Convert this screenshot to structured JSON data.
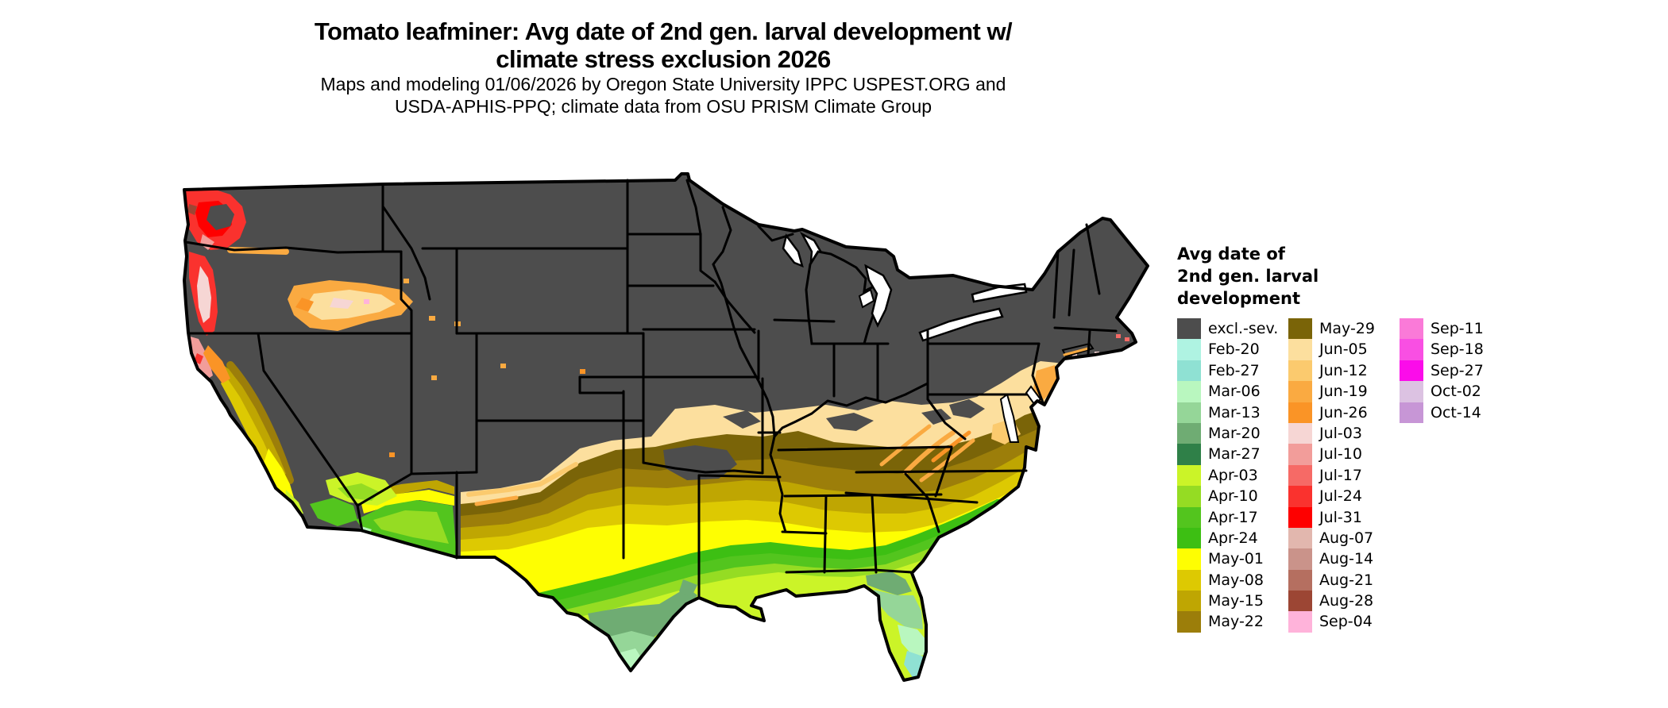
{
  "title": {
    "line1": "Tomato leafminer: Avg date of 2nd gen. larval development w/",
    "line2": "climate stress exclusion 2026"
  },
  "subtitle": {
    "line1": "Maps and modeling 01/06/2026 by Oregon State University IPPC USPEST.ORG and",
    "line2": "USDA-APHIS-PPQ; climate data from OSU PRISM Climate Group"
  },
  "legend": {
    "title_lines": [
      "Avg date of",
      "2nd gen. larval",
      "development"
    ],
    "columns": [
      {
        "entries": [
          {
            "label": "excl.-sev.",
            "color": "#4d4d4d"
          },
          {
            "label": "Feb-20",
            "color": "#aff3e2"
          },
          {
            "label": "Feb-27",
            "color": "#8fe1d3"
          },
          {
            "label": "Mar-06",
            "color": "#b9f7bf"
          },
          {
            "label": "Mar-13",
            "color": "#95d698"
          },
          {
            "label": "Mar-20",
            "color": "#6fac73"
          },
          {
            "label": "Mar-27",
            "color": "#2f8048"
          },
          {
            "label": "Apr-03",
            "color": "#cbf428"
          },
          {
            "label": "Apr-10",
            "color": "#95dc23"
          },
          {
            "label": "Apr-17",
            "color": "#53c51e"
          },
          {
            "label": "Apr-24",
            "color": "#3dbf13"
          },
          {
            "label": "May-01",
            "color": "#fefe02"
          },
          {
            "label": "May-08",
            "color": "#ddc902"
          },
          {
            "label": "May-15",
            "color": "#bfa602"
          },
          {
            "label": "May-22",
            "color": "#9c7e0a"
          }
        ]
      },
      {
        "entries": [
          {
            "label": "May-29",
            "color": "#7a6408"
          },
          {
            "label": "Jun-05",
            "color": "#fcdf9e"
          },
          {
            "label": "Jun-12",
            "color": "#fbca6e"
          },
          {
            "label": "Jun-19",
            "color": "#faaa41"
          },
          {
            "label": "Jun-26",
            "color": "#fa9426"
          },
          {
            "label": "Jul-03",
            "color": "#f6d6d4"
          },
          {
            "label": "Jul-10",
            "color": "#f29d9a"
          },
          {
            "label": "Jul-17",
            "color": "#f66a66"
          },
          {
            "label": "Jul-24",
            "color": "#fa322e"
          },
          {
            "label": "Jul-31",
            "color": "#fe0000"
          },
          {
            "label": "Aug-07",
            "color": "#e2b7ae"
          },
          {
            "label": "Aug-14",
            "color": "#ca938a"
          },
          {
            "label": "Aug-21",
            "color": "#b56f60"
          },
          {
            "label": "Aug-28",
            "color": "#9c4634"
          },
          {
            "label": "Sep-04",
            "color": "#ffb3da"
          }
        ]
      },
      {
        "entries": [
          {
            "label": "Sep-11",
            "color": "#fa7ad8"
          },
          {
            "label": "Sep-18",
            "color": "#f94fe3"
          },
          {
            "label": "Sep-27",
            "color": "#fb0cea"
          },
          {
            "label": "Oct-02",
            "color": "#dcc2e2"
          },
          {
            "label": "Oct-14",
            "color": "#c796d6"
          }
        ]
      }
    ]
  },
  "map": {
    "border_color": "#000000",
    "water_color": "#ffffff",
    "fills": {
      "excl": "#4d4d4d",
      "feb20": "#aff3e2",
      "feb27": "#8fe1d3",
      "mar06": "#b9f7bf",
      "mar13": "#95d698",
      "mar20": "#6fac73",
      "mar27": "#2f8048",
      "apr03": "#cbf428",
      "apr10": "#95dc23",
      "apr17": "#53c51e",
      "apr24": "#3dbf13",
      "may01": "#fefe02",
      "may08": "#ddc902",
      "may15": "#bfa602",
      "may22": "#9c7e0a",
      "may29": "#7a6408",
      "jun05": "#fcdf9e",
      "jun12": "#fbca6e",
      "jun19": "#faaa41",
      "jun26": "#fa9426",
      "jul03": "#f6d6d4",
      "jul10": "#f29d9a",
      "jul17": "#f66a66",
      "jul24": "#fa322e",
      "jul31": "#fe0000",
      "aug28": "#9c4634",
      "sep04": "#ffb3da"
    }
  },
  "chart_data": {
    "type": "choropleth-map",
    "title": "Tomato leafminer: Avg date of 2nd gen. larval development w/ climate stress exclusion 2026",
    "legend_title": "Avg date of 2nd gen. larval development",
    "region": "Continental United States",
    "classes": [
      "excl.-sev.",
      "Feb-20",
      "Feb-27",
      "Mar-06",
      "Mar-13",
      "Mar-20",
      "Mar-27",
      "Apr-03",
      "Apr-10",
      "Apr-17",
      "Apr-24",
      "May-01",
      "May-08",
      "May-15",
      "May-22",
      "May-29",
      "Jun-05",
      "Jun-12",
      "Jun-19",
      "Jun-26",
      "Jul-03",
      "Jul-10",
      "Jul-17",
      "Jul-24",
      "Jul-31",
      "Aug-07",
      "Aug-14",
      "Aug-21",
      "Aug-28",
      "Sep-04",
      "Sep-11",
      "Sep-18",
      "Sep-27",
      "Oct-02",
      "Oct-14"
    ],
    "class_colors": [
      "#4d4d4d",
      "#aff3e2",
      "#8fe1d3",
      "#b9f7bf",
      "#95d698",
      "#6fac73",
      "#2f8048",
      "#cbf428",
      "#95dc23",
      "#53c51e",
      "#3dbf13",
      "#fefe02",
      "#ddc902",
      "#bfa602",
      "#9c7e0a",
      "#7a6408",
      "#fcdf9e",
      "#fbca6e",
      "#faaa41",
      "#fa9426",
      "#f6d6d4",
      "#f29d9a",
      "#f66a66",
      "#fa322e",
      "#fe0000",
      "#e2b7ae",
      "#ca938a",
      "#b56f60",
      "#9c4634",
      "#ffb3da",
      "#fa7ad8",
      "#f94fe3",
      "#fb0cea",
      "#dcc2e2",
      "#c796d6"
    ],
    "notes": "Northern and mountain states classed excl.-sev.; southern tier banded Jun (peach) through Feb (mint) toward Gulf; Pacific coast Jul dates (reds/pinks); south Florida and south Texas earliest dates."
  }
}
